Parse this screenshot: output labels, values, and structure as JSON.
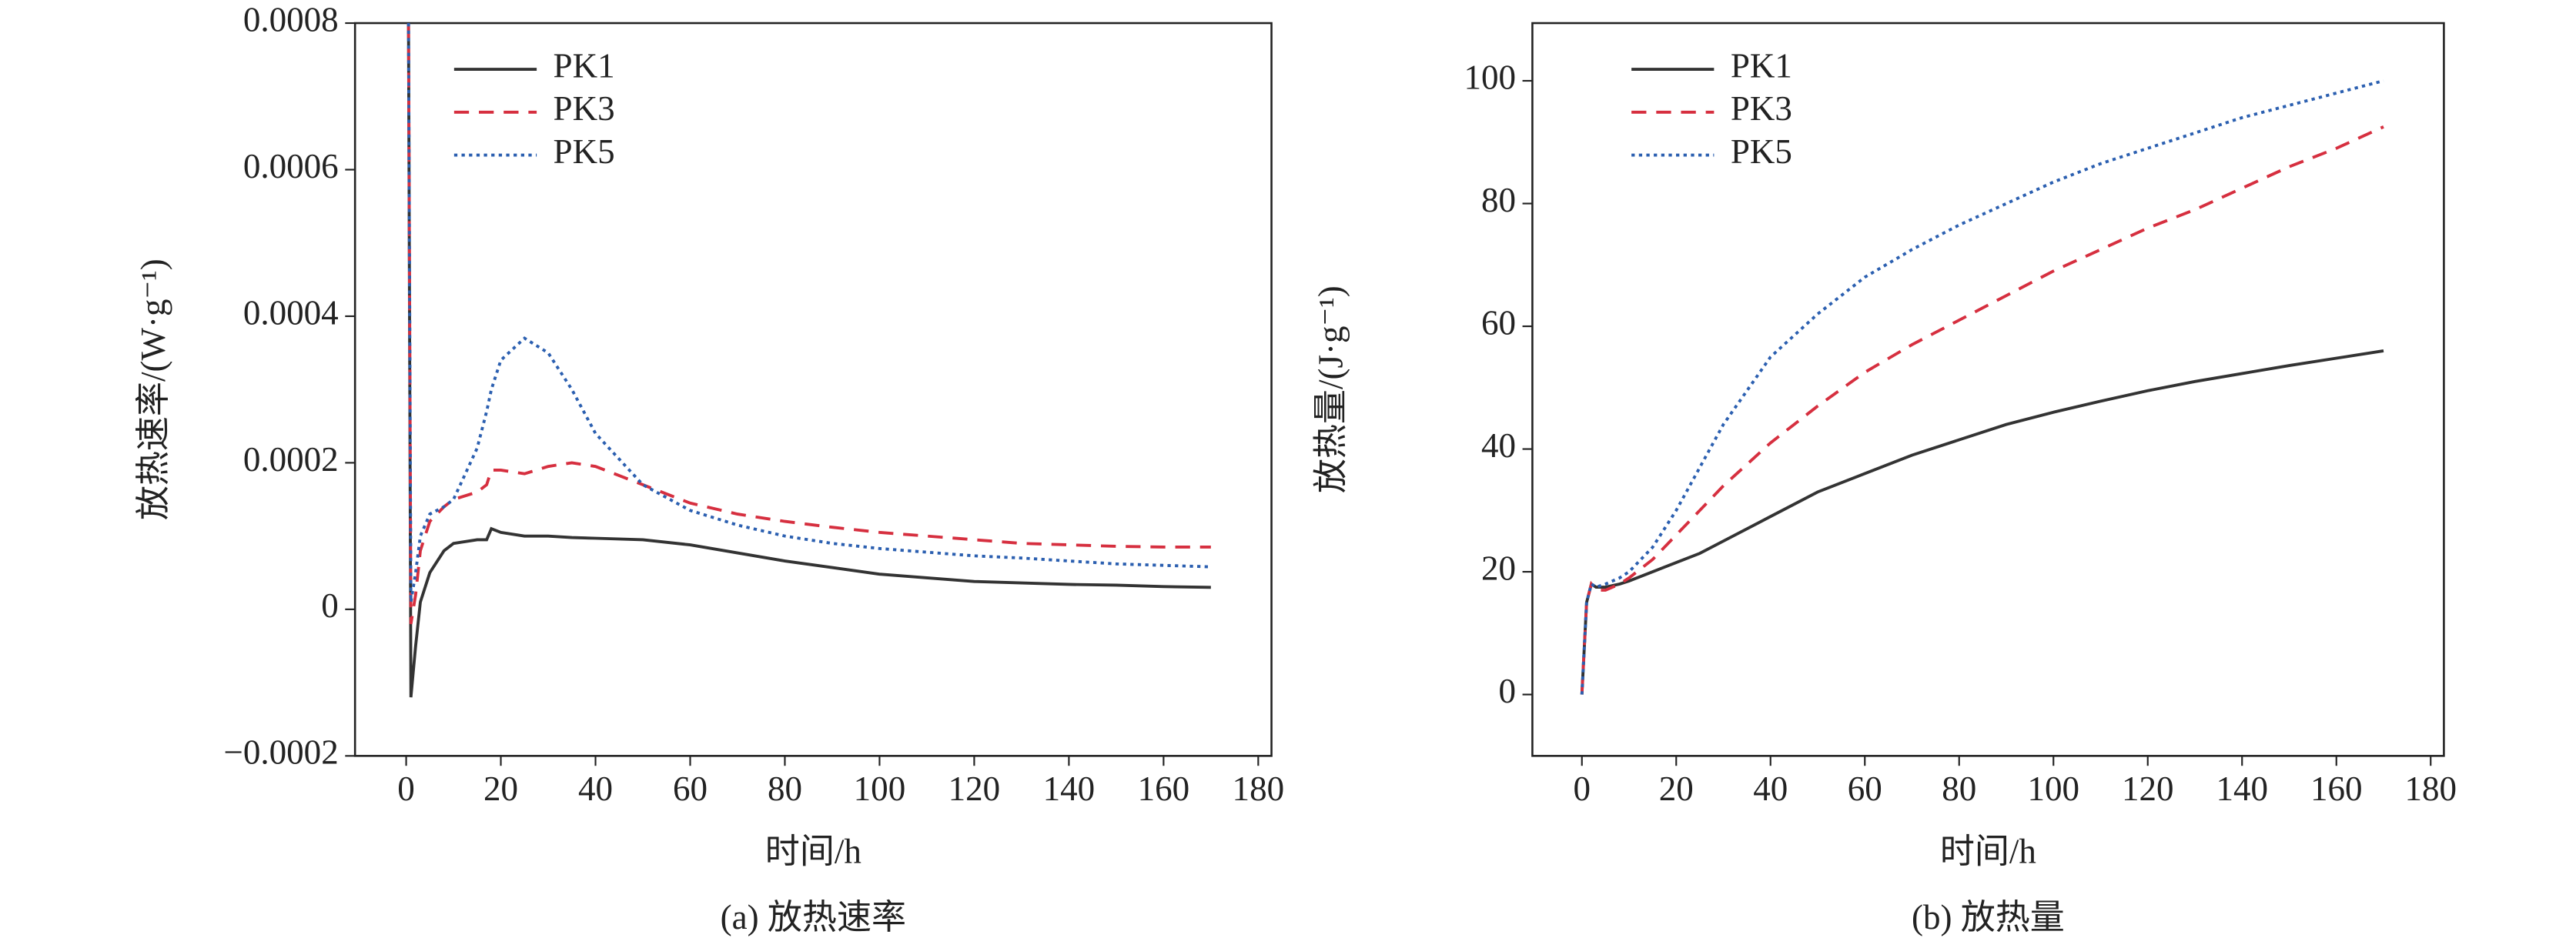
{
  "chart_data": [
    {
      "type": "line",
      "caption": "(a) 放热速率",
      "xlabel": "时间/h",
      "ylabel": "放热速率/(W·g⁻¹)",
      "xlim": [
        -10.8,
        182.8
      ],
      "ylim": [
        -0.0002,
        0.0008
      ],
      "xticks": [
        0,
        20,
        40,
        60,
        80,
        100,
        120,
        140,
        160,
        180
      ],
      "yticks": [
        {
          "value": -0.0002,
          "label": "−0.0002"
        },
        0,
        0.0002,
        0.0004,
        0.0006,
        0.0008
      ],
      "legend": "upper left",
      "x": [
        0.5,
        1,
        2,
        3,
        5,
        8,
        10,
        15,
        17,
        18,
        20,
        25,
        30,
        35,
        40,
        50,
        60,
        70,
        80,
        90,
        100,
        110,
        120,
        130,
        140,
        150,
        160,
        170
      ],
      "series": [
        {
          "name": "PK1",
          "color": "#333333",
          "dash": "solid",
          "values": [
            0.0008,
            -0.00012,
            -5e-05,
            1e-05,
            5e-05,
            8e-05,
            9e-05,
            9.5e-05,
            9.5e-05,
            0.00011,
            0.000105,
            0.0001,
            0.0001,
            9.8e-05,
            9.7e-05,
            9.5e-05,
            8.8e-05,
            7.7e-05,
            6.6e-05,
            5.7e-05,
            4.8e-05,
            4.3e-05,
            3.8e-05,
            3.6e-05,
            3.4e-05,
            3.3e-05,
            3.1e-05,
            3e-05
          ]
        },
        {
          "name": "PK3",
          "color": "#d62f3f",
          "dash": "dashed",
          "values": [
            0.0008,
            -2e-05,
            2e-05,
            8e-05,
            0.00012,
            0.00014,
            0.00015,
            0.00016,
            0.00017,
            0.00019,
            0.00019,
            0.000185,
            0.000195,
            0.0002,
            0.000195,
            0.00017,
            0.000145,
            0.00013,
            0.00012,
            0.000112,
            0.000105,
            0.0001,
            9.5e-05,
            9e-05,
            8.8e-05,
            8.6e-05,
            8.5e-05,
            8.5e-05
          ]
        },
        {
          "name": "PK5",
          "color": "#2b5fb0",
          "dash": "dotted",
          "values": [
            0.0008,
            1e-05,
            5e-05,
            0.0001,
            0.00013,
            0.00014,
            0.00015,
            0.00022,
            0.00027,
            0.0003,
            0.00034,
            0.00037,
            0.00035,
            0.0003,
            0.00024,
            0.00017,
            0.000135,
            0.000115,
            0.0001,
            9e-05,
            8.3e-05,
            7.8e-05,
            7.3e-05,
            7e-05,
            6.6e-05,
            6.2e-05,
            6e-05,
            5.8e-05
          ]
        }
      ]
    },
    {
      "type": "line",
      "caption": "(b) 放热量",
      "xlabel": "时间/h",
      "ylabel": "放热量/(J·g⁻¹)",
      "xlim": [
        -10.5,
        182.8
      ],
      "ylim": [
        -10,
        109.4
      ],
      "xticks": [
        0,
        20,
        40,
        60,
        80,
        100,
        120,
        140,
        160,
        180
      ],
      "yticks": [
        0,
        20,
        40,
        60,
        80,
        100
      ],
      "legend": "upper left",
      "x": [
        0,
        1,
        2,
        3,
        5,
        8,
        10,
        15,
        20,
        25,
        30,
        40,
        50,
        60,
        70,
        80,
        90,
        100,
        110,
        120,
        130,
        140,
        150,
        160,
        170
      ],
      "series": [
        {
          "name": "PK1",
          "color": "#333333",
          "dash": "solid",
          "values": [
            0,
            15,
            18,
            17.5,
            17.5,
            18,
            18.5,
            20,
            21.5,
            23,
            25,
            29,
            33,
            36,
            39,
            41.5,
            44,
            46,
            47.8,
            49.5,
            51,
            52.3,
            53.6,
            54.8,
            56
          ]
        },
        {
          "name": "PK3",
          "color": "#d62f3f",
          "dash": "dashed",
          "values": [
            0,
            15,
            18,
            17,
            17,
            18,
            19,
            22,
            26,
            30,
            34,
            41,
            47,
            52.5,
            57,
            61,
            65,
            69,
            72.5,
            76,
            79,
            82.5,
            86,
            89,
            92.5
          ]
        },
        {
          "name": "PK5",
          "color": "#2b5fb0",
          "dash": "dotted",
          "values": [
            0,
            15,
            18,
            17.5,
            18,
            19,
            20,
            24,
            30,
            37,
            44,
            55,
            62,
            68,
            72.5,
            76.5,
            80,
            83.5,
            86.5,
            89,
            91.5,
            94,
            96,
            98,
            100
          ]
        }
      ]
    }
  ]
}
